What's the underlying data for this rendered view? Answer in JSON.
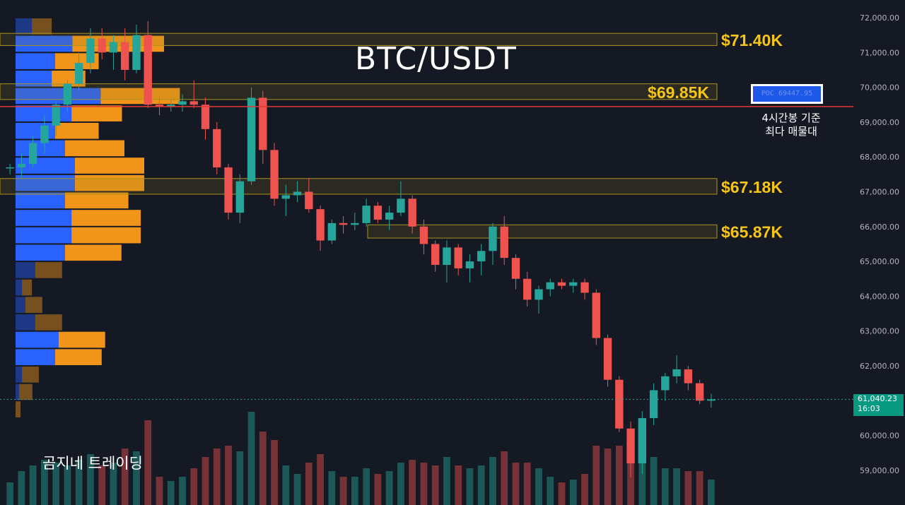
{
  "title": "BTC/USDT",
  "watermark": "곰지네 트레이딩",
  "poc": {
    "label": "POC 69447.95",
    "value": 69447.95,
    "note_line1": "4시간봉 기준",
    "note_line2": "최다 매물대"
  },
  "current_price": {
    "value": "61,040.23",
    "countdown": "16:03"
  },
  "colors": {
    "background": "#151924",
    "up": "#26a69a",
    "down": "#ef5350",
    "poc_line": "#e53935",
    "level_text": "#f5c518",
    "vp_blue": "#2962ff",
    "vp_orange": "#f0951a",
    "axis_text": "#b2b5be"
  },
  "chart_data": {
    "type": "candlestick",
    "symbol": "BTC/USDT",
    "y_axis": {
      "position": "right",
      "min": 58000,
      "max": 72000,
      "ticks": [
        "72,000.00",
        "71,000.00",
        "70,000.00",
        "69,000.00",
        "68,000.00",
        "67,000.00",
        "66,000.00",
        "65,000.00",
        "64,000.00",
        "63,000.00",
        "62,000.00",
        "61,000.00",
        "60,000.00",
        "59,000.00"
      ]
    },
    "grid": false,
    "resistance_levels": [
      {
        "label": "$71.40K",
        "low": 71200,
        "high": 71550
      },
      {
        "label": "$69.85K",
        "low": 69650,
        "high": 70100
      },
      {
        "label": "$67.18K",
        "low": 66930,
        "high": 67380
      },
      {
        "label": "$65.87K",
        "low": 65670,
        "high": 66050
      }
    ],
    "candles_approx": [
      [
        67670,
        67800,
        67500,
        67700
      ],
      [
        67700,
        68100,
        67400,
        67800
      ],
      [
        67800,
        68600,
        67700,
        68400
      ],
      [
        68400,
        69200,
        68100,
        68900
      ],
      [
        68900,
        69600,
        68600,
        69500
      ],
      [
        69500,
        70200,
        69300,
        70100
      ],
      [
        70100,
        71000,
        69900,
        70700
      ],
      [
        70700,
        71700,
        70400,
        71400
      ],
      [
        71400,
        71700,
        70800,
        71000
      ],
      [
        71000,
        71500,
        70500,
        71300
      ],
      [
        71300,
        71700,
        70200,
        70500
      ],
      [
        70500,
        71800,
        70400,
        71500
      ],
      [
        71500,
        71900,
        69400,
        69500
      ],
      [
        69500,
        69700,
        69200,
        69450
      ],
      [
        69450,
        69650,
        69300,
        69500
      ],
      [
        69500,
        69800,
        69300,
        69600
      ],
      [
        69600,
        70200,
        69400,
        69500
      ],
      [
        69500,
        69700,
        68500,
        68800
      ],
      [
        68800,
        69000,
        67500,
        67700
      ],
      [
        67700,
        67800,
        66200,
        66400
      ],
      [
        66400,
        67500,
        66100,
        67300
      ],
      [
        67300,
        70000,
        67200,
        69700
      ],
      [
        69700,
        69900,
        67800,
        68200
      ],
      [
        68200,
        68400,
        66600,
        66800
      ],
      [
        66800,
        67200,
        66300,
        66900
      ],
      [
        66900,
        67300,
        66700,
        67000
      ],
      [
        67000,
        67400,
        66400,
        66500
      ],
      [
        66500,
        66600,
        65300,
        65600
      ],
      [
        65600,
        66200,
        65500,
        66100
      ],
      [
        66100,
        66300,
        65800,
        66050
      ],
      [
        66050,
        66400,
        65900,
        66100
      ],
      [
        66100,
        66800,
        66000,
        66600
      ],
      [
        66600,
        66700,
        66100,
        66200
      ],
      [
        66200,
        66600,
        65900,
        66400
      ],
      [
        66400,
        67300,
        66300,
        66800
      ],
      [
        66800,
        66900,
        65800,
        66000
      ],
      [
        66000,
        66200,
        65200,
        65500
      ],
      [
        65500,
        65600,
        64700,
        64900
      ],
      [
        64900,
        65600,
        64400,
        65400
      ],
      [
        65400,
        65500,
        64600,
        64800
      ],
      [
        64800,
        65200,
        64400,
        65000
      ],
      [
        65000,
        65500,
        64600,
        65300
      ],
      [
        65300,
        66100,
        64900,
        66000
      ],
      [
        66000,
        66300,
        64900,
        65100
      ],
      [
        65100,
        65200,
        64200,
        64500
      ],
      [
        64500,
        64700,
        63700,
        63900
      ],
      [
        63900,
        64300,
        63500,
        64200
      ],
      [
        64200,
        64500,
        64000,
        64400
      ],
      [
        64400,
        64500,
        64200,
        64300
      ],
      [
        64300,
        64500,
        64100,
        64400
      ],
      [
        64400,
        64500,
        63900,
        64100
      ],
      [
        64100,
        64200,
        62600,
        62800
      ],
      [
        62800,
        62900,
        61400,
        61600
      ],
      [
        61600,
        61700,
        60100,
        60200
      ],
      [
        60200,
        60400,
        58800,
        59200
      ],
      [
        59200,
        60700,
        58900,
        60500
      ],
      [
        60500,
        61500,
        60300,
        61300
      ],
      [
        61300,
        61800,
        61000,
        61700
      ],
      [
        61700,
        62300,
        61500,
        61900
      ],
      [
        61900,
        62000,
        61300,
        61500
      ],
      [
        61500,
        61600,
        60900,
        61000
      ],
      [
        61000,
        61200,
        60800,
        61040
      ]
    ],
    "volume_profile_approx": [
      {
        "price": 71750,
        "buy": 33,
        "sell": 40
      },
      {
        "price": 71250,
        "buy": 115,
        "sell": 185
      },
      {
        "price": 70750,
        "buy": 80,
        "sell": 88
      },
      {
        "price": 70250,
        "buy": 73,
        "sell": 68
      },
      {
        "price": 69750,
        "buy": 172,
        "sell": 160
      },
      {
        "price": 69250,
        "buy": 113,
        "sell": 102
      },
      {
        "price": 68750,
        "buy": 80,
        "sell": 88
      },
      {
        "price": 68250,
        "buy": 100,
        "sell": 120
      },
      {
        "price": 67750,
        "buy": 120,
        "sell": 140
      },
      {
        "price": 67250,
        "buy": 120,
        "sell": 140
      },
      {
        "price": 66750,
        "buy": 100,
        "sell": 128
      },
      {
        "price": 66250,
        "buy": 113,
        "sell": 140
      },
      {
        "price": 65750,
        "buy": 113,
        "sell": 140
      },
      {
        "price": 65250,
        "buy": 100,
        "sell": 114
      },
      {
        "price": 64750,
        "buy": 40,
        "sell": 54
      },
      {
        "price": 64250,
        "buy": 13,
        "sell": 20
      },
      {
        "price": 63750,
        "buy": 20,
        "sell": 34
      },
      {
        "price": 63250,
        "buy": 40,
        "sell": 54
      },
      {
        "price": 62750,
        "buy": 87,
        "sell": 94
      },
      {
        "price": 62250,
        "buy": 80,
        "sell": 94
      },
      {
        "price": 61750,
        "buy": 13,
        "sell": 34
      },
      {
        "price": 61250,
        "buy": 7,
        "sell": 27
      },
      {
        "price": 60750,
        "buy": 0,
        "sell": 10
      }
    ]
  }
}
